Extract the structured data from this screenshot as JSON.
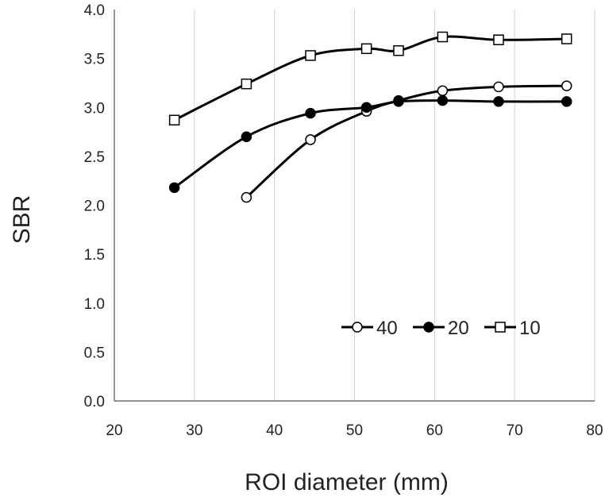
{
  "chart_data": {
    "type": "line",
    "title": "",
    "xlabel": "ROI diameter (mm)",
    "ylabel": "SBR",
    "xlim": [
      20,
      80
    ],
    "ylim": [
      0.0,
      4.0
    ],
    "xticks": [
      "20",
      "30",
      "40",
      "50",
      "60",
      "70",
      "80"
    ],
    "yticks": [
      "0.0",
      "0.5",
      "1.0",
      "1.5",
      "2.0",
      "2.5",
      "3.0",
      "3.5",
      "4.0"
    ],
    "grid": "vertical",
    "smooth": true,
    "legend_position": "bottom-right",
    "series": [
      {
        "name": "40",
        "marker": "open-circle",
        "x": [
          36.5,
          44.5,
          51.5,
          55.5,
          61,
          68,
          76.5
        ],
        "y": [
          2.08,
          2.67,
          2.96,
          3.07,
          3.17,
          3.21,
          3.22
        ]
      },
      {
        "name": "20",
        "marker": "filled-circle",
        "x": [
          27.5,
          36.5,
          44.5,
          51.5,
          55.5,
          61,
          68,
          76.5
        ],
        "y": [
          2.18,
          2.7,
          2.94,
          3.0,
          3.06,
          3.07,
          3.06,
          3.06
        ]
      },
      {
        "name": "10",
        "marker": "open-square",
        "x": [
          27.5,
          36.5,
          44.5,
          51.5,
          55.5,
          61,
          68,
          76.5
        ],
        "y": [
          2.87,
          3.24,
          3.53,
          3.6,
          3.58,
          3.72,
          3.69,
          3.7
        ]
      }
    ]
  }
}
